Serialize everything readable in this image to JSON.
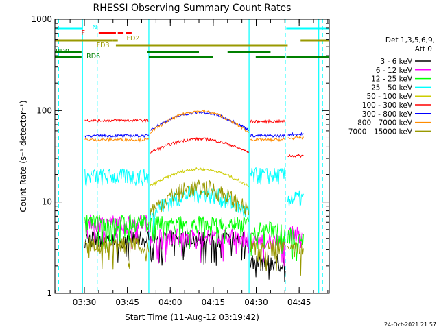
{
  "chart_data": {
    "type": "line",
    "title": "RHESSI Observing Summary Count Rates",
    "xlabel": "Start Time (11-Aug-12 03:19:42)",
    "ylabel": "Count Rate (s⁻¹ detector⁻¹)",
    "yscale": "log",
    "ylim": [
      1,
      1000
    ],
    "xlim": [
      "03:19:42",
      "04:55:30"
    ],
    "x_ticks": [
      "03:30",
      "03:45",
      "04:00",
      "04:15",
      "04:30",
      "04:45"
    ],
    "y_ticks": [
      "1",
      "10",
      "100",
      "1000"
    ],
    "grid": false,
    "legend_header": [
      "Det 1,3,5,6,9,",
      "Att 0"
    ],
    "legend_position": "right",
    "timestamp": "24-Oct-2021 21:57",
    "flag_labels": [
      "N",
      "F",
      "FD2",
      "FD3",
      "RD0",
      "RD6"
    ],
    "night_times": [
      "03:29:20",
      "03:52:30",
      "04:27:30",
      "04:51:50"
    ],
    "saa_times": [
      "03:21:00",
      "04:40:10"
    ],
    "series": [
      {
        "name": "3 - 6 keV",
        "color": "#000000",
        "level": 2.2,
        "day_windows": [
          [
            "03:30:10",
            "03:38:00"
          ],
          [
            "04:04:00",
            "04:14:00"
          ]
        ],
        "segments": [
          [
            "03:30:10",
            "03:52:30",
            4.0
          ],
          [
            "03:53:00",
            "04:27:20",
            4.0
          ],
          [
            "04:28:00",
            "04:40:10",
            2.2
          ]
        ]
      },
      {
        "name": "6 - 12 keV",
        "color": "#ff00ff",
        "segments": [
          [
            "03:30:10",
            "03:52:30",
            6.0
          ],
          [
            "03:53:00",
            "04:27:20",
            4.2
          ],
          [
            "04:28:00",
            "04:40:10",
            3.8
          ],
          [
            "04:41:00",
            "04:46:30",
            4.5
          ]
        ]
      },
      {
        "name": "12 - 25 keV",
        "color": "#00ff00",
        "segments": [
          [
            "03:30:10",
            "03:52:30",
            6.0
          ],
          [
            "03:53:00",
            "04:27:20",
            5.8
          ],
          [
            "04:28:00",
            "04:40:10",
            5.0
          ],
          [
            "04:41:00",
            "04:46:30",
            4.3
          ]
        ]
      },
      {
        "name": "25 - 50 keV",
        "color": "#00ffff",
        "segments": [
          [
            "03:30:10",
            "03:52:30",
            19.0
          ],
          [
            "03:53:00",
            "04:27:20",
            7.5,
            12.5
          ],
          [
            "04:28:00",
            "04:40:10",
            19.5
          ],
          [
            "04:41:00",
            "04:46:30",
            11.0
          ]
        ]
      },
      {
        "name": "50 - 100 keV",
        "color": "#cccc00",
        "segments": [
          [
            "03:53:00",
            "04:27:20",
            15.0,
            23.0
          ]
        ]
      },
      {
        "name": "100 - 300 keV",
        "color": "#ff0000",
        "segments": [
          [
            "03:30:10",
            "03:52:30",
            78.0
          ],
          [
            "03:53:00",
            "04:27:20",
            35.0,
            49.0
          ],
          [
            "04:28:00",
            "04:40:10",
            76.0
          ],
          [
            "04:41:00",
            "04:46:30",
            32.0
          ]
        ]
      },
      {
        "name": "300 - 800 keV",
        "color": "#0000ff",
        "segments": [
          [
            "03:30:10",
            "03:52:30",
            53.0
          ],
          [
            "03:53:00",
            "04:27:20",
            62.0,
            95.0
          ],
          [
            "04:28:00",
            "04:40:10",
            53.0
          ],
          [
            "04:41:00",
            "04:46:30",
            55.0
          ]
        ]
      },
      {
        "name": "800 - 7000 keV",
        "color": "#ff8c00",
        "segments": [
          [
            "03:30:10",
            "03:52:30",
            48.0
          ],
          [
            "03:53:00",
            "04:27:20",
            58.0,
            98.0
          ],
          [
            "04:28:00",
            "04:40:10",
            48.0
          ],
          [
            "04:41:00",
            "04:46:30",
            50.0
          ]
        ]
      },
      {
        "name": "7000 - 15000 keV",
        "color": "#999900",
        "segments": [
          [
            "03:30:10",
            "03:52:30",
            3.4
          ],
          [
            "03:53:00",
            "04:27:20",
            8.0,
            14.5
          ],
          [
            "04:28:00",
            "04:40:10",
            3.3
          ],
          [
            "04:41:00",
            "04:46:30",
            3.0
          ]
        ]
      }
    ],
    "flags": [
      {
        "name": "N",
        "color": "#00ffff",
        "bars": [
          [
            "03:19:42",
            "03:29:20"
          ],
          [
            "04:40:30",
            "04:55:30"
          ]
        ]
      },
      {
        "name": "F",
        "color": "#ff0000",
        "bars": [
          [
            "03:35:00",
            "03:41:00"
          ],
          [
            "03:41:40",
            "03:43:40"
          ],
          [
            "03:44:30",
            "03:46:30"
          ]
        ]
      },
      {
        "name": "FD2",
        "color": "#999900",
        "bars": [
          [
            "03:19:42",
            "03:40:00"
          ],
          [
            "03:40:00",
            "03:41:40"
          ],
          [
            "04:45:30",
            "04:55:30"
          ]
        ]
      },
      {
        "name": "FD3",
        "color": "#999900",
        "bars": [
          [
            "03:41:00",
            "04:41:00"
          ]
        ]
      },
      {
        "name": "RD0",
        "color": "#008000",
        "bars": [
          [
            "03:19:42",
            "03:29:00"
          ],
          [
            "03:52:00",
            "04:10:00"
          ],
          [
            "04:20:00",
            "04:35:00"
          ]
        ]
      },
      {
        "name": "RD6",
        "color": "#008000",
        "bars": [
          [
            "03:19:42",
            "03:29:00"
          ],
          [
            "03:52:30",
            "04:14:50"
          ],
          [
            "04:29:50",
            "04:40:10"
          ],
          [
            "04:40:30",
            "04:55:30"
          ]
        ]
      }
    ]
  }
}
